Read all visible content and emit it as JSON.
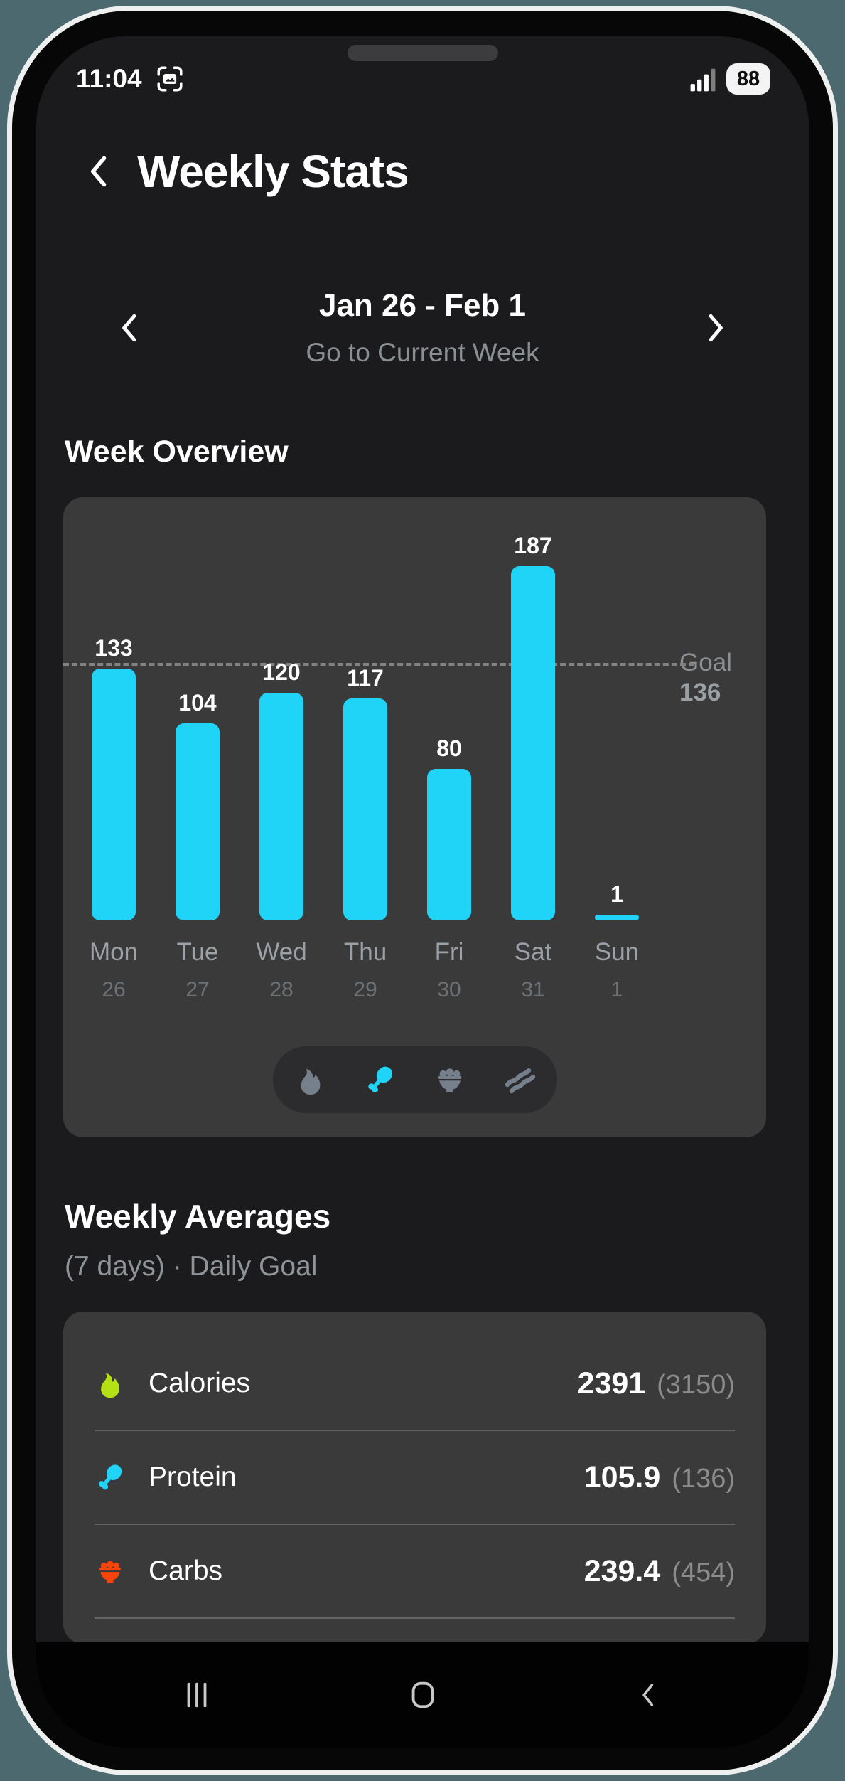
{
  "status_bar": {
    "time": "11:04",
    "battery": "88"
  },
  "header": {
    "title": "Weekly Stats"
  },
  "week_nav": {
    "label": "Jan 26 - Feb 1",
    "sub": "Go to Current Week"
  },
  "sections": {
    "overview": "Week Overview",
    "averages": "Weekly Averages",
    "averages_sub": "(7 days) · Daily Goal"
  },
  "chart_data": {
    "type": "bar",
    "title": "Week Overview",
    "metric": "protein",
    "categories": [
      "Mon",
      "Tue",
      "Wed",
      "Thu",
      "Fri",
      "Sat",
      "Sun"
    ],
    "dates": [
      "26",
      "27",
      "28",
      "29",
      "30",
      "31",
      "1"
    ],
    "values": [
      133,
      104,
      120,
      117,
      80,
      187,
      1
    ],
    "goal": 136,
    "goal_label": "Goal",
    "ylim": [
      0,
      187
    ],
    "grid": false,
    "legend": "none",
    "bar_color": "#1fd4f7"
  },
  "metric_toggle": {
    "buttons": [
      {
        "name": "calories-flame-icon",
        "glyph": "flame",
        "selected": false
      },
      {
        "name": "protein-drumstick-icon",
        "glyph": "drumstick",
        "selected": true
      },
      {
        "name": "carbs-bowl-icon",
        "glyph": "bowl",
        "selected": false
      },
      {
        "name": "fat-bacon-icon",
        "glyph": "bacon",
        "selected": false
      }
    ]
  },
  "averages": {
    "rows": [
      {
        "icon_name": "calories-flame-icon",
        "glyph": "flame",
        "icon_color": "#b5e014",
        "label": "Calories",
        "value": "2391",
        "goal": "(3150)"
      },
      {
        "icon_name": "protein-drumstick-icon",
        "glyph": "drumstick",
        "icon_color": "#1fd4f7",
        "label": "Protein",
        "value": "105.9",
        "goal": "(136)"
      },
      {
        "icon_name": "carbs-bowl-icon",
        "glyph": "bowl",
        "icon_color": "#f8430a",
        "label": "Carbs",
        "value": "239.4",
        "goal": "(454)"
      }
    ]
  },
  "nav_bar": {
    "items": [
      {
        "name": "recents-button",
        "glyph": "nav-recents"
      },
      {
        "name": "home-button",
        "glyph": "nav-home"
      },
      {
        "name": "back-button",
        "glyph": "nav-back"
      }
    ]
  },
  "colors": {
    "accent_cyan": "#1fd4f7",
    "calories_green": "#b5e014",
    "carbs_orange": "#f8430a",
    "card_bg": "#3a3a3b",
    "screen_bg": "#1b1b1d",
    "frame_bg": "#4d6970",
    "goal_line": "#828282"
  }
}
